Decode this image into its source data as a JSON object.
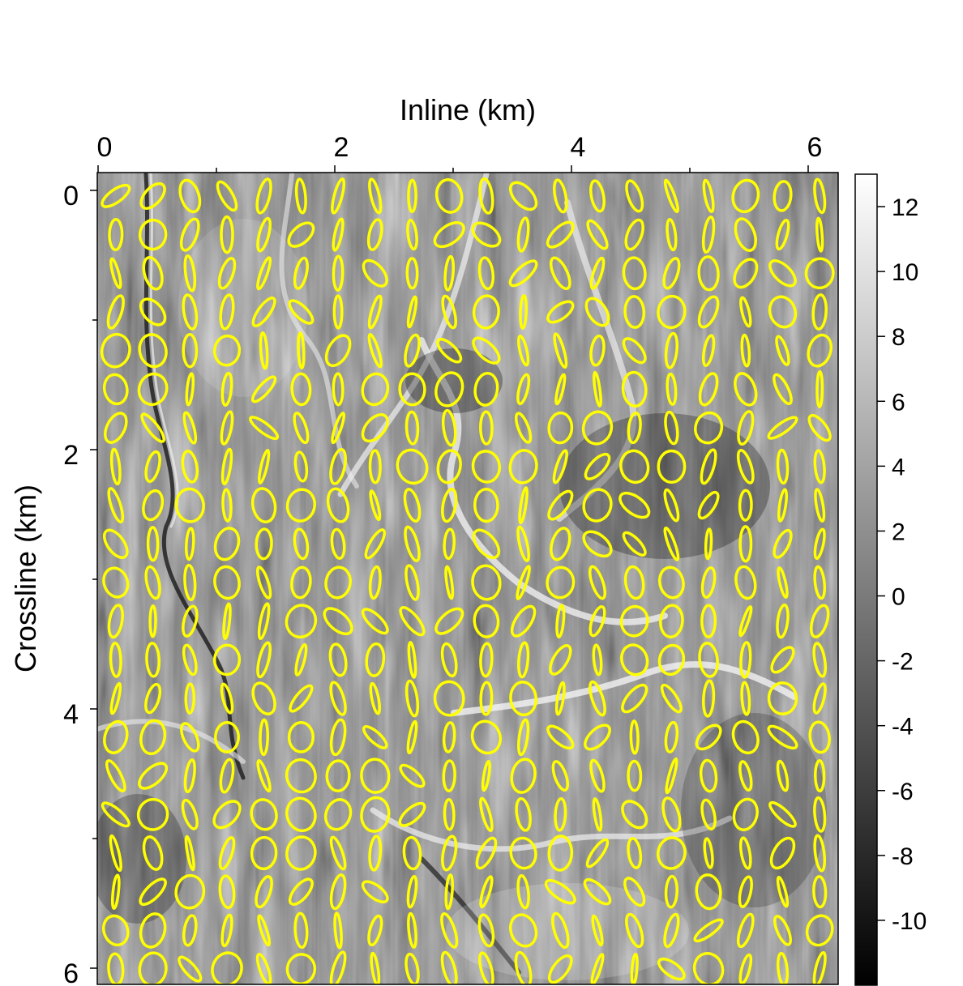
{
  "chart_data": {
    "type": "heatmap",
    "xlabel": "Inline (km)",
    "ylabel": "Crossline (km)",
    "xlim": [
      0,
      6.25
    ],
    "ylim": [
      0,
      6.25
    ],
    "x_ticks": [
      "0",
      "2",
      "4",
      "6"
    ],
    "y_ticks": [
      "0",
      "2",
      "4",
      "6"
    ],
    "colorbar": {
      "colormap": "grayscale",
      "range": [
        -12,
        13
      ],
      "ticks": [
        "12",
        "10",
        "8",
        "6",
        "4",
        "2",
        "0",
        "-2",
        "-4",
        "-6",
        "-8",
        "-10"
      ]
    },
    "overlay": {
      "glyph": "ellipse",
      "color": "#ffff00",
      "grid_columns": 20,
      "grid_rows": 21,
      "description_of_values": "orientation and anisotropy of local texture at each grid node"
    }
  },
  "colors": {
    "overlay": "#ffff00",
    "axis": "#000000",
    "background": "#ffffff"
  }
}
